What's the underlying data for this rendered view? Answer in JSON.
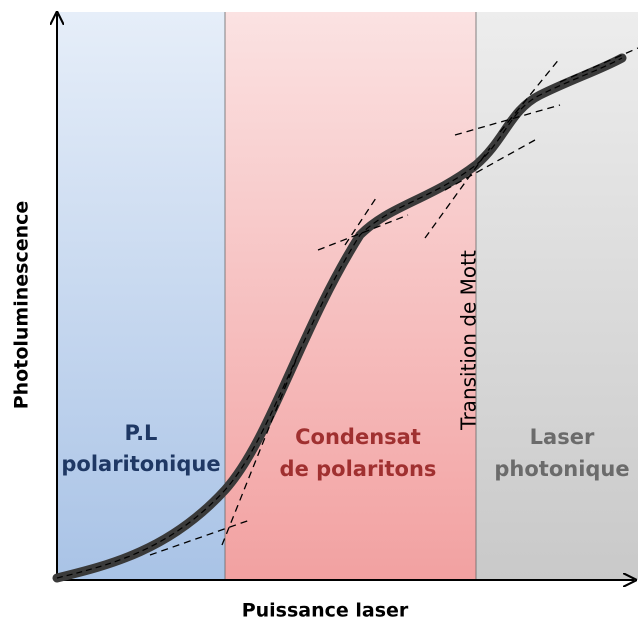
{
  "axes": {
    "x_label": "Puissance laser",
    "y_label": "Photoluminescence"
  },
  "regions": [
    {
      "lines": [
        "P.L",
        "polaritonique"
      ]
    },
    {
      "lines": [
        "Condensat",
        "de polaritons"
      ]
    },
    {
      "lines": [
        "Laser",
        "photonique"
      ]
    }
  ],
  "annotation": "Transition de Mott"
}
